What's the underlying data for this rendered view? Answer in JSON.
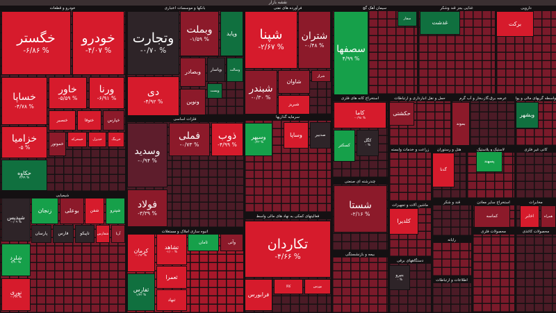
{
  "header": {
    "title": "نقشه بازار"
  },
  "colors": {
    "red": "#d61b2c",
    "maroon": "#8c1a2a",
    "wine": "#5e1d2c",
    "dark": "#2e2428",
    "green": "#16a04a",
    "dgreen": "#10703f"
  },
  "sectors": [
    "خودرو و قطعات",
    "بانکها و موسسات اعتباری",
    "فرآورده های نفتی",
    "سیمان آهک گچ",
    "غذایی بجز قند وشکر",
    "دارویی",
    "فلزات اساسی",
    "سرمایه گذاریها",
    "استخراج کانه های فلزی",
    "حمل و نقل انبارداری و ارتباطات",
    "عرضه برق،گاز،بخار و آب گرم",
    "واسطه گریهای مالی و پولی",
    "شیمیایی",
    "انبوه سازی املاک و مستغلات",
    "فعالیتهای کمکی به نهاد های مالی واسط",
    "چندرشته ای صنعتی",
    "ماشین آلات و تجهیزات",
    "بیمه و بازنشستگی",
    "دستگاههای برقی",
    "زراعت و خدمات وابسته",
    "هتل و رستوران",
    "لاستیک و پلاستیک",
    "کانی غیر فلزی",
    "قند و شکر",
    "استخراج سایر معادن",
    "مخابرات",
    "محصولات فلزی",
    "محصولات کاغذی",
    "رایانه",
    "اطلاعات و ارتباطات"
  ],
  "tiles": [
    {
      "t": "خگستر",
      "p": "-۶/۸۶ %",
      "c": "red"
    },
    {
      "t": "خودرو",
      "p": "-۴/۰۷ %",
      "c": "red"
    },
    {
      "t": "خساپا",
      "p": "-۴/۷۸ %",
      "c": "red"
    },
    {
      "t": "خاور",
      "p": "-۵/۵۹ %",
      "c": "red"
    },
    {
      "t": "ورنا",
      "p": "-۶/۹۱ %",
      "c": "red"
    },
    {
      "t": "خنصیر",
      "p": "",
      "c": "red"
    },
    {
      "t": "ختوقا",
      "p": "",
      "c": "red"
    },
    {
      "t": "خپارس",
      "p": "",
      "c": "maroon"
    },
    {
      "t": "خزامیا",
      "p": "-۵ %",
      "c": "red"
    },
    {
      "t": "حکاوه",
      "p": "۲/۹۹ %",
      "c": "dgreen"
    },
    {
      "t": "خموتور",
      "p": "",
      "c": "maroon"
    },
    {
      "t": "خمحرکه",
      "p": "",
      "c": "red"
    },
    {
      "t": "خدیزل",
      "p": "",
      "c": "red"
    },
    {
      "t": "خرینگ",
      "p": "",
      "c": "red"
    },
    {
      "t": "وتجارت",
      "p": "-۰/۷۰ %",
      "c": "dark"
    },
    {
      "t": "دی",
      "p": "-۴/۹۲ %",
      "c": "red"
    },
    {
      "t": "وبملت",
      "p": "-۱/۵۹ %",
      "c": "maroon"
    },
    {
      "t": "وپاید",
      "p": "",
      "c": "dgreen"
    },
    {
      "t": "وبصادر",
      "p": "",
      "c": "maroon"
    },
    {
      "t": "وپاسار",
      "p": "",
      "c": "dark"
    },
    {
      "t": "وسالت",
      "p": "",
      "c": "dgreen"
    },
    {
      "t": "ونوین",
      "p": "",
      "c": "maroon"
    },
    {
      "t": "وپست",
      "p": "",
      "c": "dgreen"
    },
    {
      "t": "شپنا",
      "p": "-۲/۶۷ %",
      "c": "red"
    },
    {
      "t": "شتران",
      "p": "-۰/۴۸ %",
      "c": "maroon"
    },
    {
      "t": "شبندر",
      "p": "-۰/۳۰ %",
      "c": "maroon"
    },
    {
      "t": "شاوان",
      "p": "",
      "c": "maroon"
    },
    {
      "t": "شراز",
      "p": "",
      "c": "maroon"
    },
    {
      "t": "شبریز",
      "p": "",
      "c": "red"
    },
    {
      "t": "وسدید",
      "p": "-۰/۹۴ %",
      "c": "wine"
    },
    {
      "t": "فولاد",
      "p": "-۳/۳۹ %",
      "c": "maroon"
    },
    {
      "t": "فملی",
      "p": "-۰/۷۳ %",
      "c": "maroon"
    },
    {
      "t": "ذوب",
      "p": "-۴/۹۹ %",
      "c": "red"
    },
    {
      "t": "وسپهر",
      "p": "۰/۴۳ %",
      "c": "green"
    },
    {
      "t": "وساپا",
      "p": "",
      "c": "red"
    },
    {
      "t": "صدبیر",
      "p": "",
      "c": "dark"
    },
    {
      "t": "شپدیس",
      "p": "-۰/۰۹ %",
      "c": "dark"
    },
    {
      "t": "زنجان",
      "p": "",
      "c": "green"
    },
    {
      "t": "بوعلی",
      "p": "",
      "c": "maroon"
    },
    {
      "t": "شفن",
      "p": "",
      "c": "red"
    },
    {
      "t": "شپترو",
      "p": "",
      "c": "green"
    },
    {
      "t": "پارسان",
      "p": "",
      "c": "dark"
    },
    {
      "t": "فارس",
      "p": "",
      "c": "dark"
    },
    {
      "t": "تاپیکو",
      "p": "",
      "c": "dark"
    },
    {
      "t": "شفارس",
      "p": "",
      "c": "red"
    },
    {
      "t": "آریا",
      "p": "",
      "c": "maroon"
    },
    {
      "t": "شلرد",
      "p": "۲/۹۰ %",
      "c": "green"
    },
    {
      "t": "نوری",
      "p": "-۰/۹۹ %",
      "c": "red"
    },
    {
      "t": "کرمان",
      "p": "-۰/۹۳ %",
      "c": "red"
    },
    {
      "t": "تشاهد",
      "p": "-۱/۰۰ %",
      "c": "red"
    },
    {
      "t": "ثامان",
      "p": "",
      "c": "green"
    },
    {
      "t": "وآتی",
      "p": "",
      "c": "maroon"
    },
    {
      "t": "ثفارس",
      "p": "۱/۴۳ %",
      "c": "dgreen"
    },
    {
      "t": "ثعمرا",
      "p": "",
      "c": "red"
    },
    {
      "t": "ثنهاد",
      "p": "",
      "c": "red"
    },
    {
      "t": "تکاردان",
      "p": "-۴/۶۶ %",
      "c": "red"
    },
    {
      "t": "فرابورس",
      "p": "",
      "c": "red"
    },
    {
      "t": "کالا",
      "p": "",
      "c": "red"
    },
    {
      "t": "بورس",
      "p": "",
      "c": "red"
    },
    {
      "t": "سصفها",
      "p": "۴/۹۹ %",
      "c": "green"
    },
    {
      "t": "سفار",
      "p": "",
      "c": "dgreen"
    },
    {
      "t": "غدشت",
      "p": "",
      "c": "dgreen"
    },
    {
      "t": "برکت",
      "p": "",
      "c": "red"
    },
    {
      "t": "کاما",
      "p": "-۰/۹۸ %",
      "c": "red"
    },
    {
      "t": "کسکتر",
      "p": "",
      "c": "green"
    },
    {
      "t": "کگل",
      "p": "۰ %",
      "c": "dark"
    },
    {
      "t": "حکشتی",
      "p": "",
      "c": "maroon"
    },
    {
      "t": "بموند",
      "p": "",
      "c": "maroon"
    },
    {
      "t": "وبشهر",
      "p": "",
      "c": "dgreen"
    },
    {
      "t": "گدنا",
      "p": "",
      "c": "red"
    },
    {
      "t": "پسهند",
      "p": "",
      "c": "green"
    },
    {
      "t": "شستا",
      "p": "-۲/۱۶ %",
      "c": "maroon"
    },
    {
      "t": "کلدیرا",
      "p": "",
      "c": "red"
    },
    {
      "t": "بنیرو",
      "p": "۰ %",
      "c": "dark"
    },
    {
      "t": "کماسه",
      "p": "",
      "c": "maroon"
    },
    {
      "t": "اخابر",
      "p": "",
      "c": "red"
    },
    {
      "t": "همراه",
      "p": "",
      "c": "maroon"
    }
  ]
}
